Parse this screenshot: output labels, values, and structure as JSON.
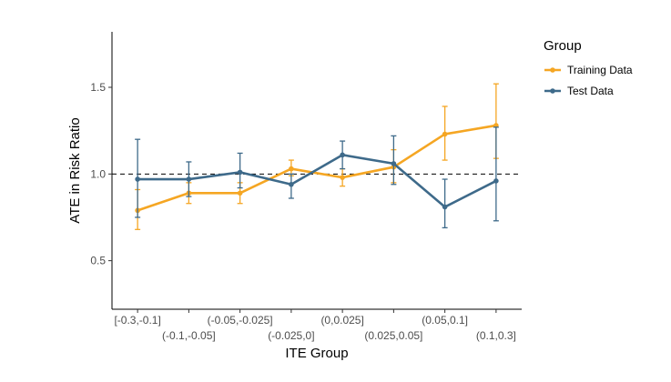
{
  "chart_data": {
    "type": "line",
    "xlabel": "ITE Group",
    "ylabel": "ATE in Risk Ratio",
    "categories": [
      "[-0.3,-0.1]",
      "(-0.1,-0.05]",
      "(-0.05,-0.025]",
      "(-0.025,0]",
      "(0,0.025]",
      "(0.025,0.05]",
      "(0.05,0.1]",
      "(0.1,0.3]"
    ],
    "ylim": [
      0.22,
      1.82
    ],
    "yticks": [
      0.5,
      1.0,
      1.5
    ],
    "ytick_labels": [
      "0.5",
      "1.0",
      "1.5"
    ],
    "reference_line": 1.0,
    "grid": false,
    "legend": {
      "title": "Group",
      "position": "right"
    },
    "series": [
      {
        "name": "Training Data",
        "color": "#F5A623",
        "values": [
          0.79,
          0.89,
          0.89,
          1.03,
          0.98,
          1.04,
          1.23,
          1.28
        ],
        "lower": [
          0.68,
          0.83,
          0.83,
          0.99,
          0.93,
          0.95,
          1.08,
          1.09
        ],
        "upper": [
          0.91,
          0.95,
          0.95,
          1.08,
          1.03,
          1.14,
          1.39,
          1.52
        ]
      },
      {
        "name": "Test Data",
        "color": "#3E6A8A",
        "values": [
          0.97,
          0.97,
          1.01,
          0.94,
          1.11,
          1.06,
          0.81,
          0.96
        ],
        "lower": [
          0.75,
          0.87,
          0.92,
          0.86,
          1.03,
          0.94,
          0.69,
          0.73
        ],
        "upper": [
          1.2,
          1.07,
          1.12,
          1.0,
          1.19,
          1.22,
          0.97,
          1.27
        ]
      }
    ]
  }
}
